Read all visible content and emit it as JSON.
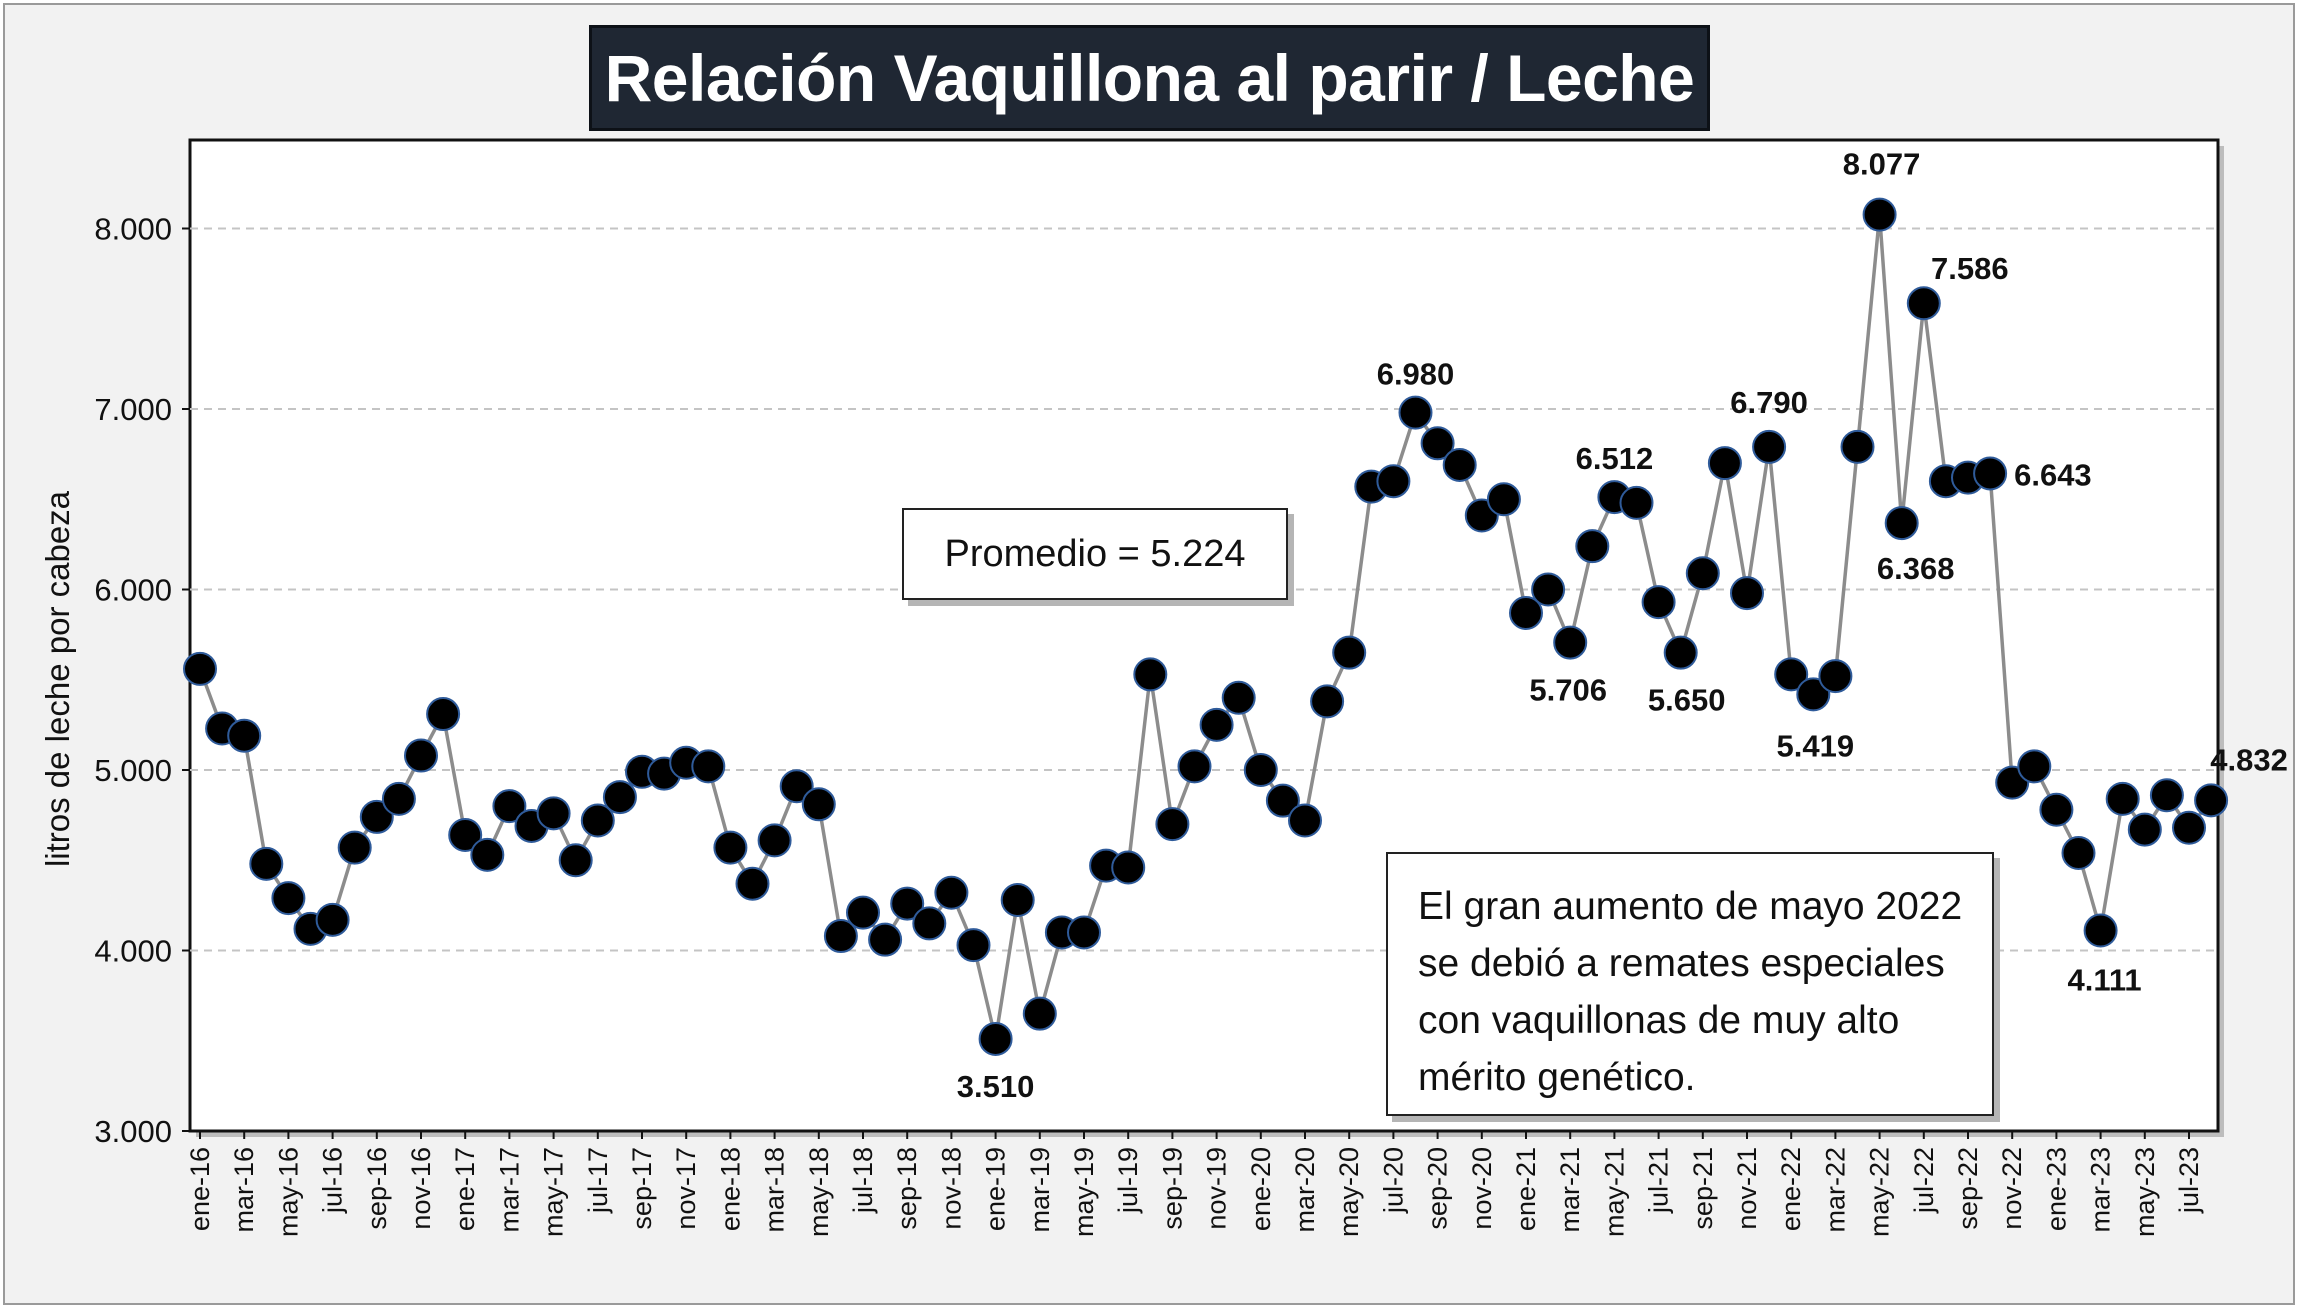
{
  "title": "Relación Vaquillona al parir / Leche",
  "chart_data": {
    "type": "line",
    "ylabel": "litros de leche por cabeza",
    "ylim": [
      3000,
      8500
    ],
    "yticks": [
      3000,
      4000,
      5000,
      6000,
      7000,
      8000
    ],
    "ytick_labels": [
      "3.000",
      "4.000",
      "5.000",
      "6.000",
      "7.000",
      "8.000"
    ],
    "grid": "horizontal dashed",
    "xtick_labels": [
      "ene-16",
      "mar-16",
      "may-16",
      "jul-16",
      "sep-16",
      "nov-16",
      "ene-17",
      "mar-17",
      "may-17",
      "jul-17",
      "sep-17",
      "nov-17",
      "ene-18",
      "mar-18",
      "may-18",
      "jul-18",
      "sep-18",
      "nov-18",
      "ene-19",
      "mar-19",
      "may-19",
      "jul-19",
      "sep-19",
      "nov-19",
      "ene-20",
      "mar-20",
      "may-20",
      "jul-20",
      "sep-20",
      "nov-20",
      "ene-21",
      "mar-21",
      "may-21",
      "jul-21",
      "sep-21",
      "nov-21",
      "ene-22",
      "mar-22",
      "may-22",
      "jul-22",
      "sep-22",
      "nov-22",
      "ene-23",
      "mar-23",
      "may-23",
      "jul-23"
    ],
    "values": [
      5560,
      5230,
      5190,
      4480,
      4290,
      4120,
      4170,
      4570,
      4740,
      4840,
      5080,
      5310,
      4640,
      4530,
      4800,
      4690,
      4760,
      4500,
      4720,
      4850,
      4990,
      4980,
      5040,
      5020,
      4570,
      4370,
      4610,
      4910,
      4810,
      4080,
      4210,
      4060,
      4260,
      4150,
      4320,
      4030,
      3510,
      4280,
      3650,
      4100,
      4100,
      4470,
      4460,
      5530,
      4700,
      5020,
      5250,
      5400,
      5000,
      4830,
      4720,
      5380,
      5650,
      6570,
      6600,
      6980,
      6810,
      6690,
      6410,
      6500,
      5870,
      6000,
      5706,
      6240,
      6512,
      6480,
      5930,
      5650,
      6090,
      6700,
      5980,
      6790,
      5530,
      5419,
      5520,
      6790,
      8077,
      6368,
      7586,
      6600,
      6620,
      6643,
      4930,
      5020,
      4780,
      4540,
      4111,
      4840,
      4670,
      4860,
      4680,
      4832
    ],
    "data_labels": [
      {
        "index": 36,
        "text": "3.510"
      },
      {
        "index": 55,
        "text": "6.980"
      },
      {
        "index": 62,
        "text": "5.706"
      },
      {
        "index": 64,
        "text": "6.512"
      },
      {
        "index": 67,
        "text": "5.650"
      },
      {
        "index": 71,
        "text": "6.790"
      },
      {
        "index": 73,
        "text": "5.419"
      },
      {
        "index": 76,
        "text": "8.077"
      },
      {
        "index": 77,
        "text": "6.368"
      },
      {
        "index": 78,
        "text": "7.586"
      },
      {
        "index": 81,
        "text": "6.643"
      },
      {
        "index": 86,
        "text": "4.111"
      },
      {
        "index": 91,
        "text": "4.832"
      }
    ],
    "annotations": {
      "promedio": "Promedio = 5.224",
      "note": "El gran  aumento de mayo 2022 se debió a remates especiales con vaquillonas de muy alto mérito genético."
    },
    "colors": {
      "line": "#8c8c8c",
      "marker_fill": "#000000",
      "marker_edge": "#2f5b9a",
      "title_bg": "#1f2733"
    }
  }
}
